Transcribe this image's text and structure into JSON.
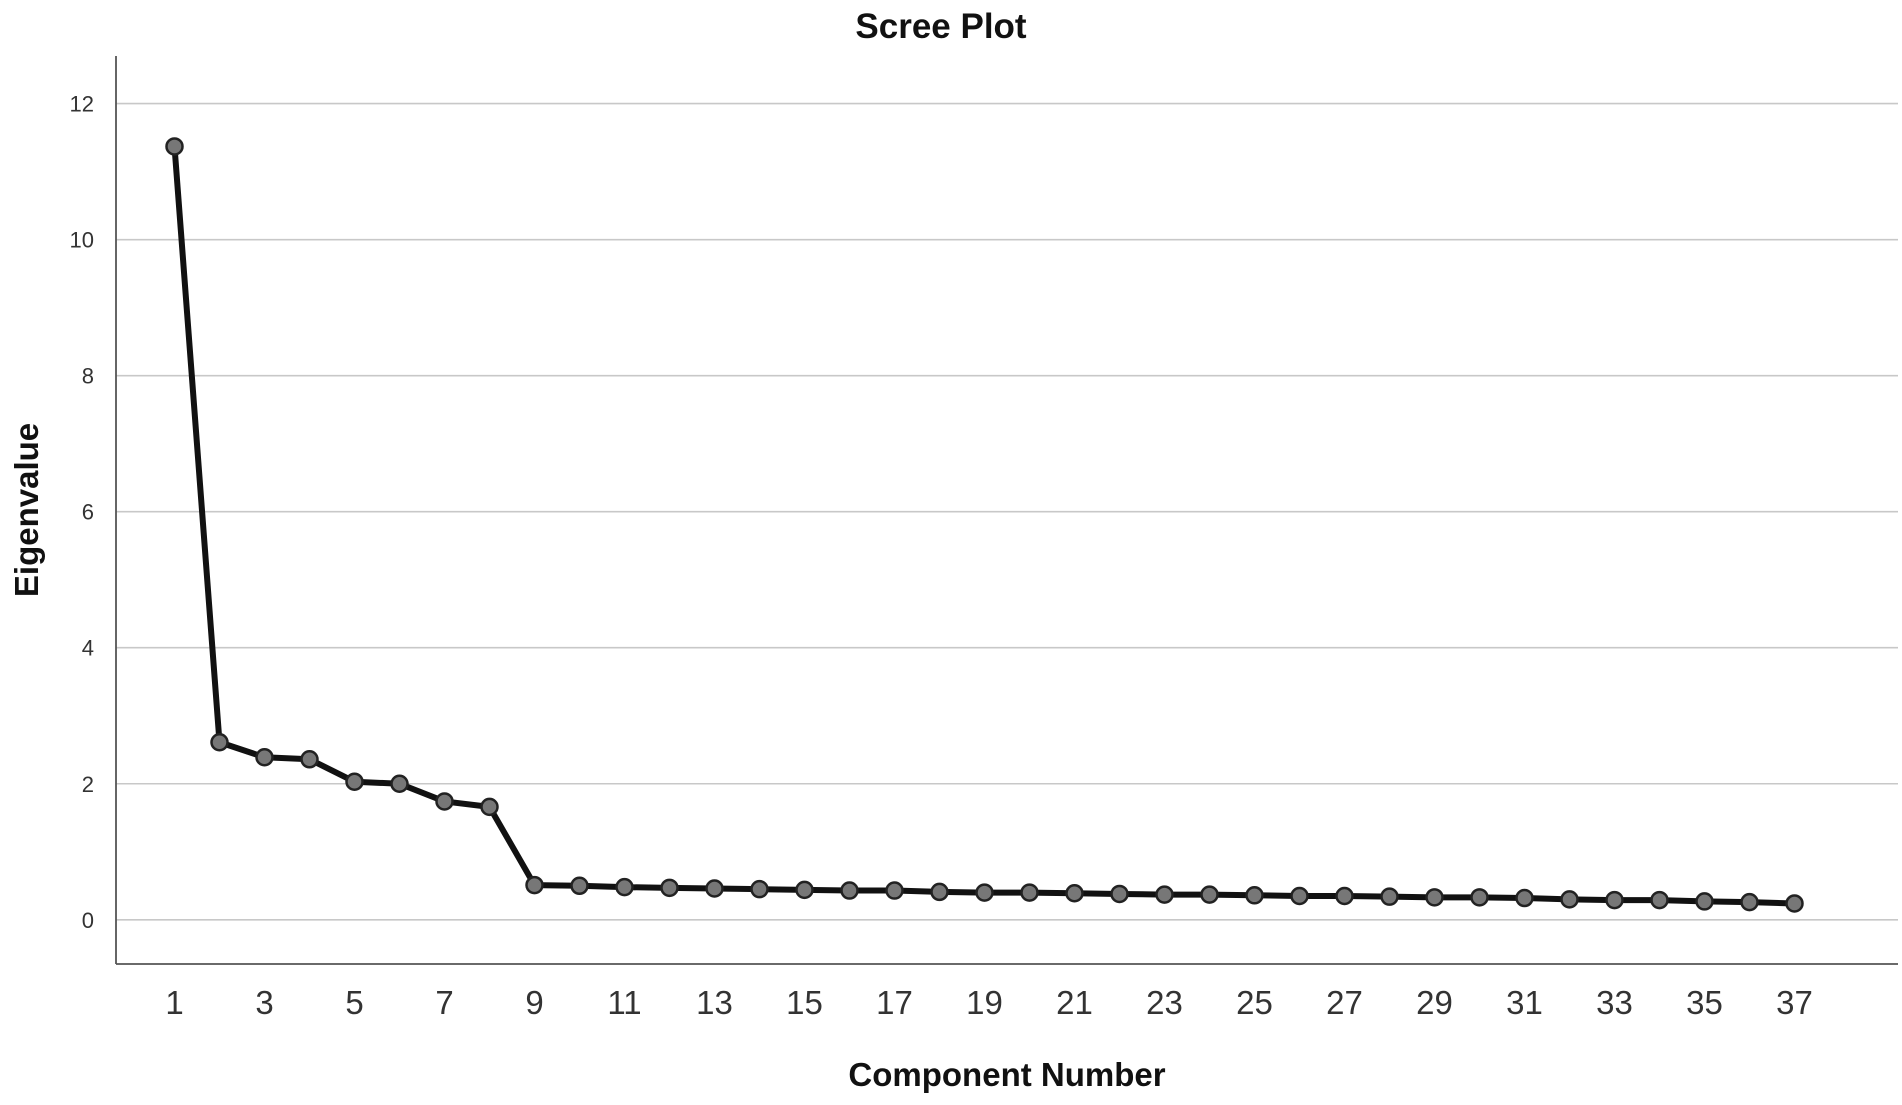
{
  "chart_data": {
    "type": "line",
    "title": "Scree Plot",
    "xlabel": "Component Number",
    "ylabel": "Eigenvalue",
    "ylim": [
      -0.65,
      12.7
    ],
    "xlim": [
      -0.3,
      39.3
    ],
    "y_ticks": [
      0,
      2,
      4,
      6,
      8,
      10,
      12
    ],
    "x_tick_labels": [
      1,
      3,
      5,
      7,
      9,
      11,
      13,
      15,
      17,
      19,
      21,
      23,
      25,
      27,
      29,
      31,
      33,
      35,
      37
    ],
    "grid": "horizontal",
    "legend": "none",
    "series": [
      {
        "x": [
          1,
          2,
          3,
          4,
          5,
          6,
          7,
          8,
          9,
          10,
          11,
          12,
          13,
          14,
          15,
          16,
          17,
          18,
          19,
          20,
          21,
          22,
          23,
          24,
          25,
          26,
          27,
          28,
          29,
          30,
          31,
          32,
          33,
          34,
          35,
          36,
          37
        ],
        "values": [
          11.37,
          2.61,
          2.39,
          2.36,
          2.03,
          2.0,
          1.74,
          1.66,
          0.51,
          0.5,
          0.48,
          0.47,
          0.46,
          0.45,
          0.44,
          0.43,
          0.43,
          0.41,
          0.4,
          0.4,
          0.39,
          0.38,
          0.37,
          0.37,
          0.36,
          0.35,
          0.35,
          0.34,
          0.33,
          0.33,
          0.32,
          0.3,
          0.29,
          0.29,
          0.27,
          0.26,
          0.24
        ],
        "color": "#111111",
        "marker_color": "#777777"
      }
    ]
  }
}
